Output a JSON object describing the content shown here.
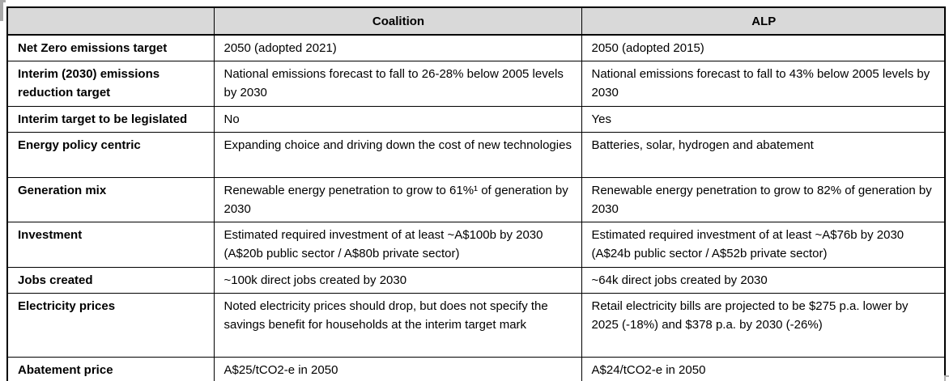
{
  "table": {
    "header": {
      "col1": "",
      "col2": "Coalition",
      "col3": "ALP"
    },
    "rows": [
      {
        "label": "Net Zero emissions target",
        "coalition": "2050 (adopted 2021)",
        "alp": "2050 (adopted 2015)"
      },
      {
        "label": "Interim (2030) emissions reduction target",
        "coalition": "National emissions forecast to fall to 26-28% below 2005 levels by 2030",
        "alp": "National emissions forecast to fall to 43% below 2005 levels by 2030"
      },
      {
        "label": "Interim target to be legislated",
        "coalition": "No",
        "alp": "Yes"
      },
      {
        "label": "Energy policy centric",
        "coalition": "Expanding choice and driving down the cost of new technologies",
        "alp": "Batteries, solar, hydrogen and abatement"
      },
      {
        "label": "Generation mix",
        "coalition": "Renewable energy penetration to grow to 61%¹ of generation by 2030",
        "alp": "Renewable energy penetration to grow to 82% of generation by 2030"
      },
      {
        "label": "Investment",
        "coalition": "Estimated required investment of at least ~A$100b by 2030 (A$20b public sector / A$80b private sector)",
        "alp": "Estimated required investment of at least ~A$76b by 2030 (A$24b public sector / A$52b private sector)"
      },
      {
        "label": "Jobs created",
        "coalition": "~100k direct jobs created by 2030",
        "alp": "~64k direct jobs created by 2030"
      },
      {
        "label": "Electricity prices",
        "coalition": "Noted electricity prices should drop, but does not specify the savings benefit for households at the interim target mark",
        "alp": "Retail electricity bills are projected to be $275 p.a. lower by 2025 (-18%) and $378 p.a. by 2030 (-26%)"
      },
      {
        "label": "Abatement price",
        "coalition": "A$25/tCO2-e in 2050",
        "alp": "A$24/tCO2-e in 2050"
      }
    ]
  },
  "colors": {
    "header_bg": "#d9d9d9",
    "border": "#000000",
    "handle_gray": "#a9a9a9"
  }
}
